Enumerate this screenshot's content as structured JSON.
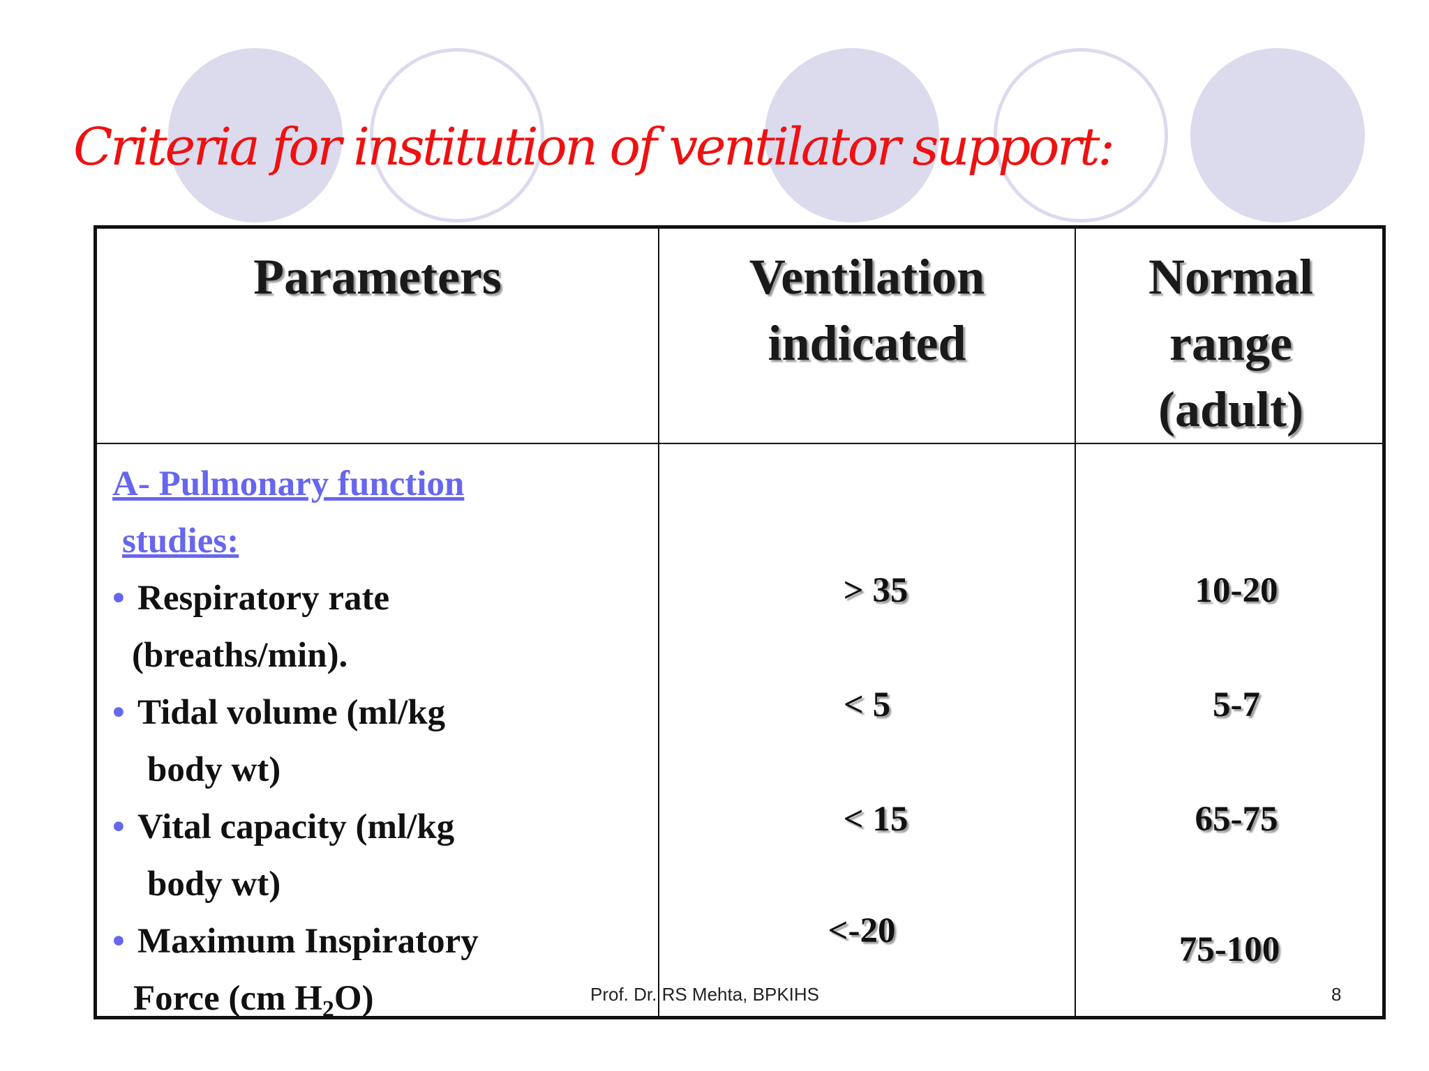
{
  "slide": {
    "title": "Criteria for institution of ventilator support:",
    "footer_author": "Prof. Dr. RS Mehta, BPKIHS",
    "page_number": "8"
  },
  "table": {
    "headers": {
      "parameters": "Parameters",
      "ventilation_indicated": [
        "Ventilation",
        "indicated"
      ],
      "normal_range": [
        "Normal",
        "range",
        "(adult)"
      ]
    },
    "section": {
      "line1": "A- Pulmonary function ",
      "line2": "studies:"
    },
    "bullet": "•",
    "rows": [
      {
        "param_line1": "Respiratory rate",
        "param_line2": "(breaths/min).",
        "ventilation": "> 35",
        "normal": "10-20"
      },
      {
        "param_line1": "Tidal volume (ml/kg",
        "param_line2": "body wt)",
        "ventilation": "< 5",
        "normal": "5-7"
      },
      {
        "param_line1": "Vital capacity (ml/kg",
        "param_line2": "body wt)",
        "ventilation": "< 15",
        "normal": "65-75"
      },
      {
        "param_line1": "Maximum Inspiratory",
        "param_line2_prefix": "Force (cm H",
        "param_line2_sub": "2",
        "param_line2_suffix": "O)",
        "ventilation": "<-20",
        "normal": "75-100"
      }
    ]
  }
}
